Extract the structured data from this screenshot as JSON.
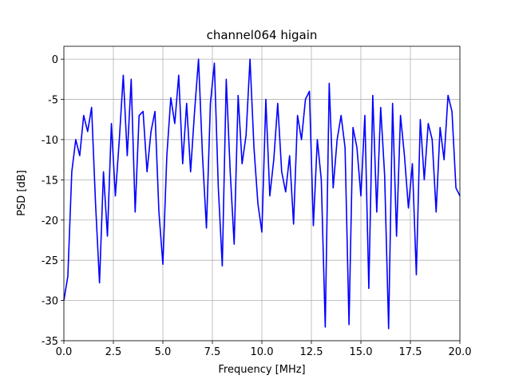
{
  "chart_data": {
    "type": "line",
    "title": "channel064 higain",
    "xlabel": "Frequency [MHz]",
    "ylabel": "PSD [dB]",
    "x": [
      0.0,
      0.2,
      0.4,
      0.6,
      0.8,
      1.0,
      1.2,
      1.4,
      1.6,
      1.8,
      2.0,
      2.2,
      2.4,
      2.6,
      2.8,
      3.0,
      3.2,
      3.4,
      3.6,
      3.8,
      4.0,
      4.2,
      4.4,
      4.6,
      4.8,
      5.0,
      5.2,
      5.4,
      5.6,
      5.8,
      6.0,
      6.2,
      6.4,
      6.6,
      6.8,
      7.0,
      7.2,
      7.4,
      7.6,
      7.8,
      8.0,
      8.2,
      8.4,
      8.6,
      8.8,
      9.0,
      9.2,
      9.4,
      9.6,
      9.8,
      10.0,
      10.2,
      10.4,
      10.6,
      10.8,
      11.0,
      11.2,
      11.4,
      11.6,
      11.8,
      12.0,
      12.2,
      12.4,
      12.6,
      12.8,
      13.0,
      13.2,
      13.4,
      13.6,
      13.8,
      14.0,
      14.2,
      14.4,
      14.6,
      14.8,
      15.0,
      15.2,
      15.4,
      15.6,
      15.8,
      16.0,
      16.2,
      16.4,
      16.6,
      16.8,
      17.0,
      17.2,
      17.4,
      17.6,
      17.8,
      18.0,
      18.2,
      18.4,
      18.6,
      18.8,
      19.0,
      19.2,
      19.4,
      19.6,
      19.8,
      20.0
    ],
    "series": [
      {
        "name": "channel064 higain",
        "color": "#0000ff",
        "values": [
          -30,
          -27,
          -14,
          -10,
          -12,
          -7,
          -9,
          -6,
          -18,
          -27.8,
          -14,
          -22,
          -8,
          -17,
          -10,
          -2,
          -12,
          -2.5,
          -19,
          -7,
          -6.5,
          -14,
          -9,
          -6.5,
          -19,
          -25.5,
          -12,
          -4.8,
          -8,
          -2,
          -13,
          -5.5,
          -14,
          -6.5,
          0,
          -12,
          -21,
          -5.5,
          -0.5,
          -16,
          -25.7,
          -2.5,
          -14,
          -23,
          -4.5,
          -13,
          -9.5,
          0,
          -11,
          -18,
          -21.5,
          -5,
          -17,
          -12.5,
          -5.5,
          -14,
          -16.5,
          -12,
          -20.5,
          -7,
          -10,
          -5,
          -4,
          -20.7,
          -10,
          -15,
          -33.3,
          -3,
          -16,
          -10,
          -7,
          -11,
          -33,
          -8.5,
          -11,
          -17,
          -7,
          -28.5,
          -4.5,
          -19,
          -6,
          -14.5,
          -33.5,
          -5.5,
          -22,
          -7,
          -12,
          -18.5,
          -13,
          -26.8,
          -7.5,
          -15,
          -8,
          -10,
          -19,
          -8.5,
          -12.5,
          -4.5,
          -6.5,
          -16,
          -17
        ]
      }
    ],
    "xlim": [
      0,
      20
    ],
    "ylim": [
      -35,
      1.6
    ],
    "xticks": [
      {
        "value": 0,
        "label": "0.0"
      },
      2.5,
      {
        "value": 5,
        "label": "5.0"
      },
      7.5,
      {
        "value": 10,
        "label": "10.0"
      },
      12.5,
      {
        "value": 15,
        "label": "15.0"
      },
      17.5,
      {
        "value": 20,
        "label": "20.0"
      }
    ],
    "yticks": [
      0,
      -5,
      -10,
      -15,
      -20,
      -25,
      -30,
      -35
    ],
    "grid": true
  }
}
